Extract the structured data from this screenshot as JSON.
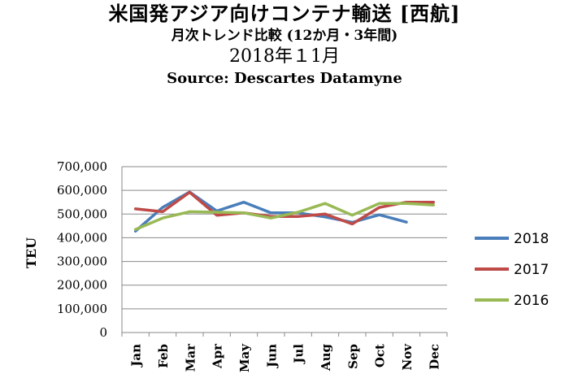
{
  "header": {
    "title_line1": "米国発アジア向けコンテナ輸送 [西航]",
    "title_line2": "月次トレンド比較 (12か月・3年間)",
    "title_line3": "2018年１1月",
    "source": "Source: Descartes Datamyne"
  },
  "chart_data": {
    "type": "line",
    "title": "米国発アジア向けコンテナ輸送 [西航]",
    "subtitle": "月次トレンド比較 (12か月・3年間)",
    "ylabel": "TEU",
    "xlabel": "",
    "categories": [
      "Jan",
      "Feb",
      "Mar",
      "Apr",
      "May",
      "Jun",
      "Jul",
      "Aug",
      "Sep",
      "Oct",
      "Nov",
      "Dec"
    ],
    "ylim": [
      0,
      700000
    ],
    "yticks": [
      0,
      100000,
      200000,
      300000,
      400000,
      500000,
      600000,
      700000
    ],
    "ytick_labels": [
      "0",
      "100,000",
      "200,000",
      "300,000",
      "400,000",
      "500,000",
      "600,000",
      "700,000"
    ],
    "grid": true,
    "legend_position": "right",
    "series": [
      {
        "name": "2018",
        "color": "#4a7ebb",
        "values": [
          428000,
          528000,
          593000,
          513000,
          550000,
          505000,
          505000,
          488000,
          465000,
          497000,
          466000,
          null
        ]
      },
      {
        "name": "2017",
        "color": "#be4b48",
        "values": [
          522000,
          510000,
          592000,
          495000,
          505000,
          490000,
          490000,
          500000,
          458000,
          528000,
          550000,
          550000
        ]
      },
      {
        "name": "2016",
        "color": "#98b954",
        "values": [
          435000,
          483000,
          510000,
          508000,
          505000,
          483000,
          508000,
          545000,
          495000,
          545000,
          545000,
          538000
        ]
      }
    ]
  }
}
